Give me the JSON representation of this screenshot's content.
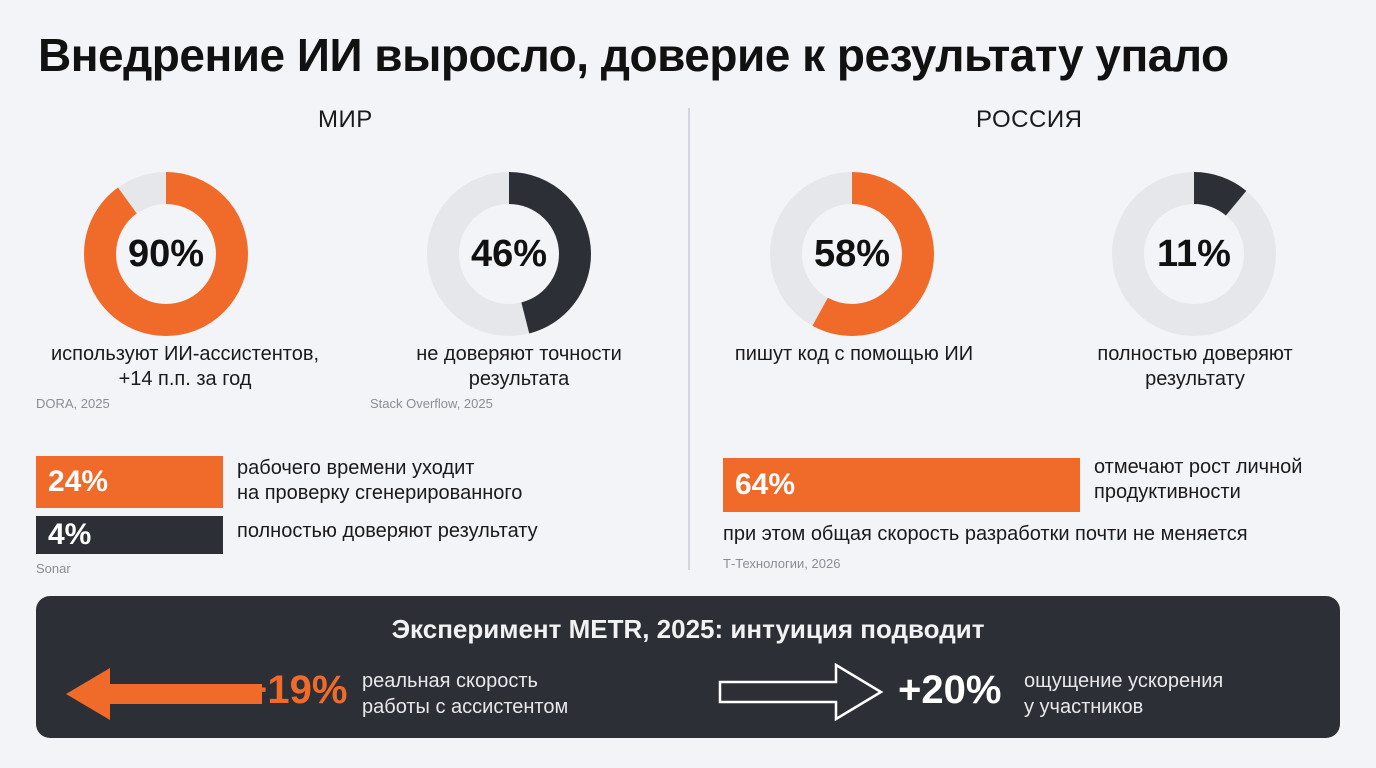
{
  "title": "Внедрение ИИ выросло, доверие к результату упало",
  "colors": {
    "accent": "#f06a2a",
    "dark": "#2c2f36",
    "track": "#e6e7eb",
    "background": "#f3f4f7"
  },
  "world": {
    "heading": "МИР",
    "donuts": [
      {
        "value_label": "90%",
        "caption": "используют ИИ-ассистентов,\n+14 п.п. за год",
        "source": "DORA, 2025"
      },
      {
        "value_label": "46%",
        "caption": "не доверяют точности\nрезультата",
        "source": "Stack Overflow, 2025"
      }
    ],
    "bars": [
      {
        "value_label": "24%",
        "label": "рабочего времени уходит\nна проверку сгенерированного"
      },
      {
        "value_label": "4%",
        "label": "полностью доверяют результату"
      }
    ],
    "bars_source": "Sonar"
  },
  "russia": {
    "heading": "РОССИЯ",
    "donuts": [
      {
        "value_label": "58%",
        "caption": "пишут код с помощью ИИ"
      },
      {
        "value_label": "11%",
        "caption": "полностью доверяют\nрезультату"
      }
    ],
    "bar": {
      "value_label": "64%",
      "label": "отмечают рост личной\nпродуктивности"
    },
    "note": "при этом общая скорость разработки почти не меняется",
    "source": "Т-Технологии, 2026"
  },
  "experiment": {
    "title": "Эксперимент METR, 2025: интуиция подводит",
    "left": {
      "value_label": "−19%",
      "label": "реальная скорость\nработы с ассистентом"
    },
    "right": {
      "value_label": "+20%",
      "label": "ощущение ускорения\nу участников"
    }
  },
  "chart_data": [
    {
      "type": "pie",
      "title": "МИР",
      "series": [
        {
          "value": 90,
          "color": "#f06a2a"
        },
        {
          "value": 46,
          "color": "#2c2f36"
        }
      ]
    },
    {
      "type": "bar",
      "title": "МИР",
      "categories": [
        "рабочего времени уходит на проверку сгенерированного",
        "полностью доверяют результату"
      ],
      "values": [
        24,
        4
      ]
    },
    {
      "type": "pie",
      "title": "РОССИЯ",
      "series": [
        {
          "value": 58,
          "color": "#f06a2a"
        },
        {
          "value": 11,
          "color": "#2c2f36"
        }
      ]
    },
    {
      "type": "bar",
      "title": "РОССИЯ",
      "categories": [
        "отмечают рост личной продуктивности"
      ],
      "values": [
        64
      ]
    },
    {
      "type": "bar",
      "title": "Эксперимент METR, 2025: интуиция подводит",
      "categories": [
        "реальная скорость работы с ассистентом",
        "ощущение ускорения у участников"
      ],
      "values": [
        -19,
        20
      ]
    }
  ]
}
